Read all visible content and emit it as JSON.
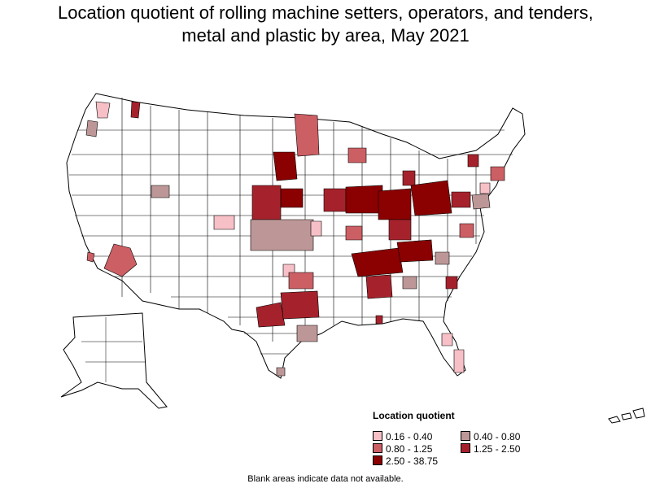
{
  "title": {
    "line1": "Location quotient of rolling machine setters, operators, and tenders,",
    "line2": "metal and plastic by area, May 2021"
  },
  "legend": {
    "title": "Location quotient",
    "items": [
      {
        "label": "0.16 - 0.40",
        "color": "#f6c0c6"
      },
      {
        "label": "0.40 - 0.80",
        "color": "#bd9797"
      },
      {
        "label": "0.80 - 1.25",
        "color": "#cc5f64"
      },
      {
        "label": "1.25 - 2.50",
        "color": "#a5222c"
      },
      {
        "label": "2.50 - 38.75",
        "color": "#8b0000"
      }
    ]
  },
  "footnote": "Blank areas indicate data not available.",
  "colors": {
    "blank": "#ffffff",
    "border": "#000000"
  }
}
